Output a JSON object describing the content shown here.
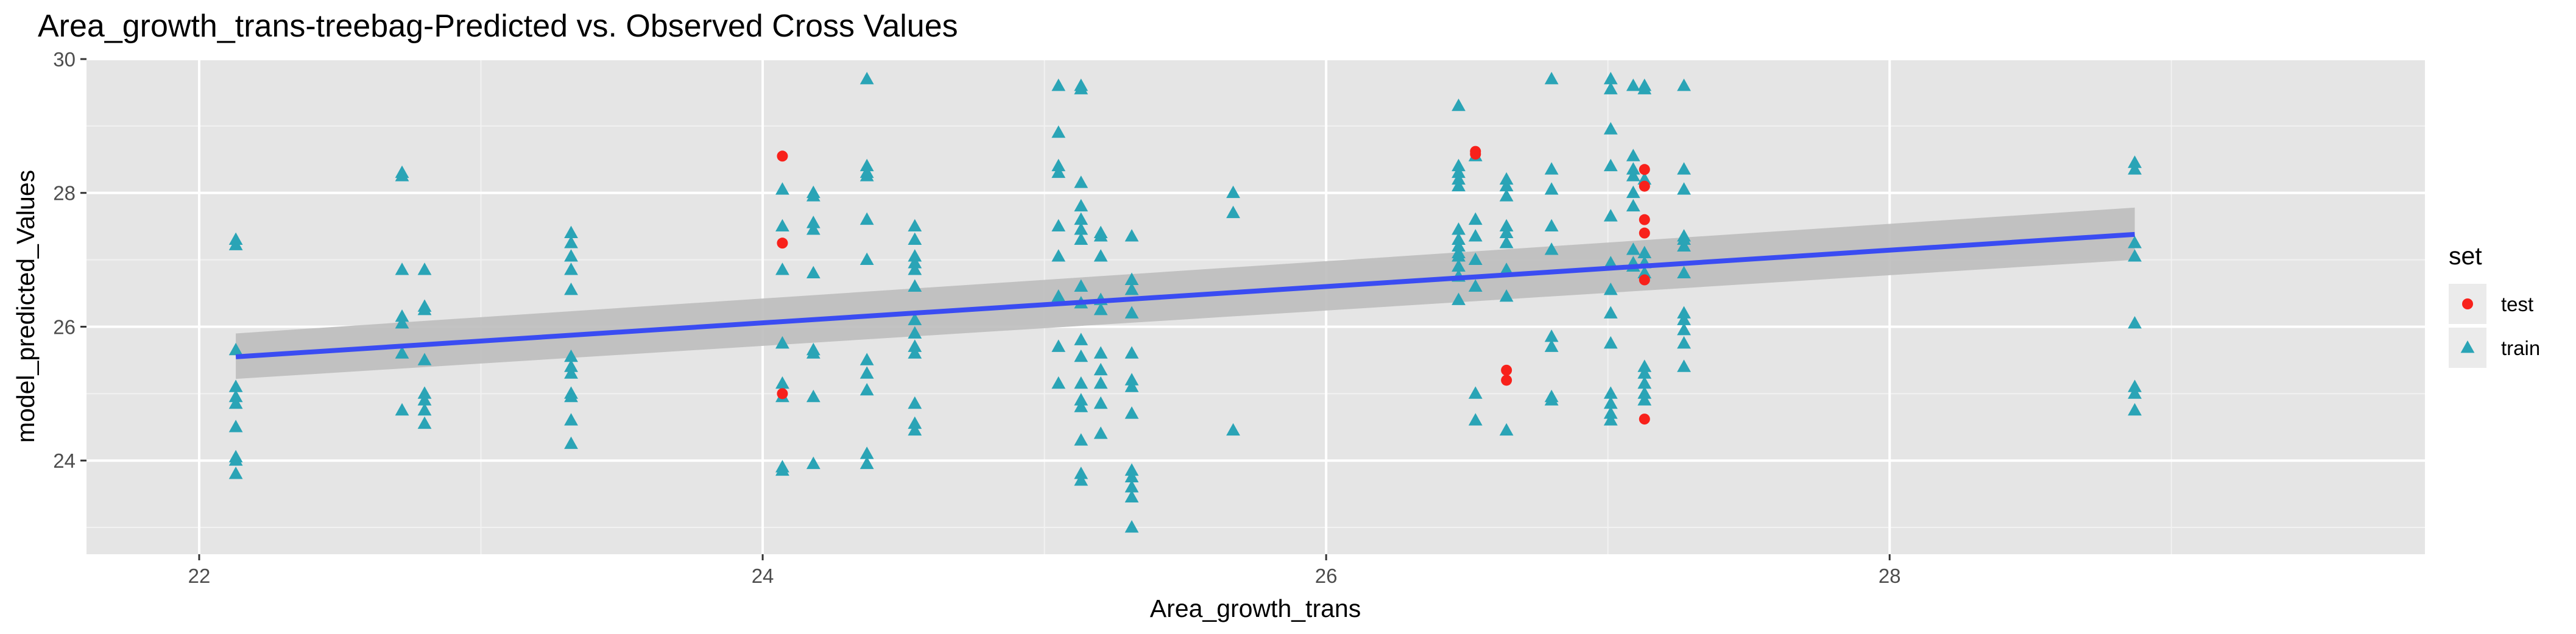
{
  "chart_data": {
    "type": "scatter",
    "title": "Area_growth_trans-treebag-Predicted vs. Observed Cross Values",
    "xlabel": "Area_growth_trans",
    "ylabel": "model_predicted_Values",
    "xlim": [
      21.6,
      29.9
    ],
    "ylim": [
      22.6,
      30.0
    ],
    "xticks": [
      22,
      24,
      26,
      28
    ],
    "yticks": [
      24,
      26,
      28,
      30
    ],
    "grid": true,
    "panel_background": "#e5e5e5",
    "legend": {
      "title": "set",
      "position": "right",
      "entries": [
        {
          "label": "test",
          "shape": "circle",
          "color": "#f8211b"
        },
        {
          "label": "train",
          "shape": "triangle",
          "color": "#2aa4b6"
        }
      ]
    },
    "trend": {
      "method": "linear",
      "color": "#3a4cf2",
      "band_color": "#bdbdbd",
      "x": [
        22.13,
        28.87
      ],
      "y": [
        25.55,
        27.38
      ],
      "band_low": [
        25.22,
        27.0
      ],
      "band_high": [
        25.9,
        27.78
      ]
    },
    "series": [
      {
        "name": "train",
        "shape": "triangle",
        "color": "#2aa4b6",
        "points": [
          [
            22.13,
            27.3
          ],
          [
            22.13,
            27.22
          ],
          [
            22.13,
            25.65
          ],
          [
            22.13,
            25.1
          ],
          [
            22.13,
            24.95
          ],
          [
            22.13,
            24.85
          ],
          [
            22.13,
            24.5
          ],
          [
            22.13,
            24.05
          ],
          [
            22.13,
            24.0
          ],
          [
            22.13,
            23.8
          ],
          [
            22.72,
            28.3
          ],
          [
            22.72,
            28.25
          ],
          [
            22.72,
            26.85
          ],
          [
            22.72,
            26.15
          ],
          [
            22.72,
            26.05
          ],
          [
            22.72,
            25.6
          ],
          [
            22.72,
            24.75
          ],
          [
            22.8,
            26.85
          ],
          [
            22.8,
            26.3
          ],
          [
            22.8,
            26.25
          ],
          [
            22.8,
            25.5
          ],
          [
            22.8,
            25.0
          ],
          [
            22.8,
            24.9
          ],
          [
            22.8,
            24.75
          ],
          [
            22.8,
            24.55
          ],
          [
            23.32,
            27.4
          ],
          [
            23.32,
            27.25
          ],
          [
            23.32,
            27.05
          ],
          [
            23.32,
            26.85
          ],
          [
            23.32,
            26.55
          ],
          [
            23.32,
            25.55
          ],
          [
            23.32,
            25.4
          ],
          [
            23.32,
            25.3
          ],
          [
            23.32,
            25.0
          ],
          [
            23.32,
            24.95
          ],
          [
            23.32,
            24.6
          ],
          [
            23.32,
            24.25
          ],
          [
            24.07,
            28.05
          ],
          [
            24.07,
            27.5
          ],
          [
            24.07,
            26.85
          ],
          [
            24.07,
            25.75
          ],
          [
            24.07,
            25.15
          ],
          [
            24.07,
            24.95
          ],
          [
            24.07,
            23.9
          ],
          [
            24.07,
            23.85
          ],
          [
            24.18,
            28.0
          ],
          [
            24.18,
            27.95
          ],
          [
            24.18,
            27.55
          ],
          [
            24.18,
            27.45
          ],
          [
            24.18,
            26.8
          ],
          [
            24.18,
            25.65
          ],
          [
            24.18,
            25.6
          ],
          [
            24.18,
            24.95
          ],
          [
            24.18,
            23.95
          ],
          [
            24.37,
            29.7
          ],
          [
            24.37,
            28.4
          ],
          [
            24.37,
            28.3
          ],
          [
            24.37,
            28.25
          ],
          [
            24.37,
            27.6
          ],
          [
            24.37,
            27.0
          ],
          [
            24.37,
            25.5
          ],
          [
            24.37,
            25.3
          ],
          [
            24.37,
            25.05
          ],
          [
            24.37,
            24.1
          ],
          [
            24.37,
            23.95
          ],
          [
            24.54,
            27.5
          ],
          [
            24.54,
            27.3
          ],
          [
            24.54,
            27.05
          ],
          [
            24.54,
            26.95
          ],
          [
            24.54,
            26.85
          ],
          [
            24.54,
            26.6
          ],
          [
            24.54,
            26.1
          ],
          [
            24.54,
            25.9
          ],
          [
            24.54,
            25.7
          ],
          [
            24.54,
            25.6
          ],
          [
            24.54,
            24.85
          ],
          [
            24.54,
            24.55
          ],
          [
            24.54,
            24.45
          ],
          [
            25.05,
            29.6
          ],
          [
            25.05,
            28.9
          ],
          [
            25.05,
            28.4
          ],
          [
            25.05,
            28.3
          ],
          [
            25.05,
            27.5
          ],
          [
            25.05,
            27.05
          ],
          [
            25.05,
            26.45
          ],
          [
            25.05,
            25.7
          ],
          [
            25.05,
            25.15
          ],
          [
            25.13,
            29.6
          ],
          [
            25.13,
            29.55
          ],
          [
            25.13,
            28.15
          ],
          [
            25.13,
            27.8
          ],
          [
            25.13,
            27.6
          ],
          [
            25.13,
            27.45
          ],
          [
            25.13,
            27.3
          ],
          [
            25.13,
            26.6
          ],
          [
            25.13,
            26.35
          ],
          [
            25.13,
            25.8
          ],
          [
            25.13,
            25.55
          ],
          [
            25.13,
            25.15
          ],
          [
            25.13,
            24.9
          ],
          [
            25.13,
            24.8
          ],
          [
            25.13,
            24.3
          ],
          [
            25.13,
            23.8
          ],
          [
            25.13,
            23.7
          ],
          [
            25.2,
            27.4
          ],
          [
            25.2,
            27.35
          ],
          [
            25.2,
            27.05
          ],
          [
            25.2,
            26.4
          ],
          [
            25.2,
            26.25
          ],
          [
            25.2,
            25.6
          ],
          [
            25.2,
            25.35
          ],
          [
            25.2,
            25.15
          ],
          [
            25.2,
            24.85
          ],
          [
            25.2,
            24.4
          ],
          [
            25.31,
            27.35
          ],
          [
            25.31,
            26.7
          ],
          [
            25.31,
            26.55
          ],
          [
            25.31,
            26.2
          ],
          [
            25.31,
            25.6
          ],
          [
            25.31,
            25.2
          ],
          [
            25.31,
            25.1
          ],
          [
            25.31,
            24.7
          ],
          [
            25.31,
            23.85
          ],
          [
            25.31,
            23.75
          ],
          [
            25.31,
            23.6
          ],
          [
            25.31,
            23.45
          ],
          [
            25.31,
            23.0
          ],
          [
            25.67,
            28.0
          ],
          [
            25.67,
            27.7
          ],
          [
            25.67,
            24.45
          ],
          [
            26.47,
            29.3
          ],
          [
            26.47,
            28.4
          ],
          [
            26.47,
            28.3
          ],
          [
            26.47,
            28.2
          ],
          [
            26.47,
            28.1
          ],
          [
            26.47,
            27.45
          ],
          [
            26.47,
            27.3
          ],
          [
            26.47,
            27.2
          ],
          [
            26.47,
            27.1
          ],
          [
            26.47,
            27.05
          ],
          [
            26.47,
            26.9
          ],
          [
            26.47,
            26.75
          ],
          [
            26.47,
            26.4
          ],
          [
            26.53,
            28.55
          ],
          [
            26.53,
            27.6
          ],
          [
            26.53,
            27.35
          ],
          [
            26.53,
            27.0
          ],
          [
            26.53,
            26.6
          ],
          [
            26.53,
            25.0
          ],
          [
            26.53,
            24.6
          ],
          [
            26.64,
            28.2
          ],
          [
            26.64,
            28.1
          ],
          [
            26.64,
            27.95
          ],
          [
            26.64,
            27.5
          ],
          [
            26.64,
            27.4
          ],
          [
            26.64,
            27.25
          ],
          [
            26.64,
            26.85
          ],
          [
            26.64,
            26.45
          ],
          [
            26.64,
            24.45
          ],
          [
            26.8,
            29.7
          ],
          [
            26.8,
            28.35
          ],
          [
            26.8,
            28.05
          ],
          [
            26.8,
            27.5
          ],
          [
            26.8,
            27.15
          ],
          [
            26.8,
            25.85
          ],
          [
            26.8,
            25.7
          ],
          [
            26.8,
            24.95
          ],
          [
            26.8,
            24.9
          ],
          [
            27.01,
            29.7
          ],
          [
            27.01,
            29.55
          ],
          [
            27.01,
            28.95
          ],
          [
            27.01,
            28.4
          ],
          [
            27.01,
            27.65
          ],
          [
            27.01,
            26.95
          ],
          [
            27.01,
            26.55
          ],
          [
            27.01,
            26.2
          ],
          [
            27.01,
            25.75
          ],
          [
            27.01,
            25.0
          ],
          [
            27.01,
            24.85
          ],
          [
            27.01,
            24.7
          ],
          [
            27.01,
            24.6
          ],
          [
            27.09,
            29.6
          ],
          [
            27.09,
            28.55
          ],
          [
            27.09,
            28.35
          ],
          [
            27.09,
            28.25
          ],
          [
            27.09,
            28.0
          ],
          [
            27.09,
            27.8
          ],
          [
            27.09,
            27.15
          ],
          [
            27.09,
            26.95
          ],
          [
            27.09,
            26.9
          ],
          [
            27.13,
            29.6
          ],
          [
            27.13,
            29.55
          ],
          [
            27.13,
            28.2
          ],
          [
            27.13,
            27.1
          ],
          [
            27.13,
            26.95
          ],
          [
            27.13,
            26.8
          ],
          [
            27.13,
            25.4
          ],
          [
            27.13,
            25.3
          ],
          [
            27.13,
            25.15
          ],
          [
            27.13,
            25.0
          ],
          [
            27.13,
            24.9
          ],
          [
            27.27,
            29.6
          ],
          [
            27.27,
            28.35
          ],
          [
            27.27,
            28.05
          ],
          [
            27.27,
            27.35
          ],
          [
            27.27,
            27.3
          ],
          [
            27.27,
            27.2
          ],
          [
            27.27,
            26.8
          ],
          [
            27.27,
            26.2
          ],
          [
            27.27,
            26.1
          ],
          [
            27.27,
            25.95
          ],
          [
            27.27,
            25.75
          ],
          [
            27.27,
            25.4
          ],
          [
            28.87,
            28.45
          ],
          [
            28.87,
            28.35
          ],
          [
            28.87,
            27.25
          ],
          [
            28.87,
            27.05
          ],
          [
            28.87,
            26.05
          ],
          [
            28.87,
            25.1
          ],
          [
            28.87,
            25.0
          ],
          [
            28.87,
            24.75
          ]
        ]
      },
      {
        "name": "test",
        "shape": "circle",
        "color": "#f8211b",
        "points": [
          [
            24.07,
            28.55
          ],
          [
            24.07,
            27.25
          ],
          [
            24.07,
            25.0
          ],
          [
            26.53,
            28.62
          ],
          [
            26.53,
            28.58
          ],
          [
            26.64,
            25.35
          ],
          [
            26.64,
            25.2
          ],
          [
            27.13,
            28.35
          ],
          [
            27.13,
            28.1
          ],
          [
            27.13,
            27.6
          ],
          [
            27.13,
            27.4
          ],
          [
            27.13,
            26.7
          ],
          [
            27.13,
            24.62
          ]
        ]
      }
    ]
  }
}
